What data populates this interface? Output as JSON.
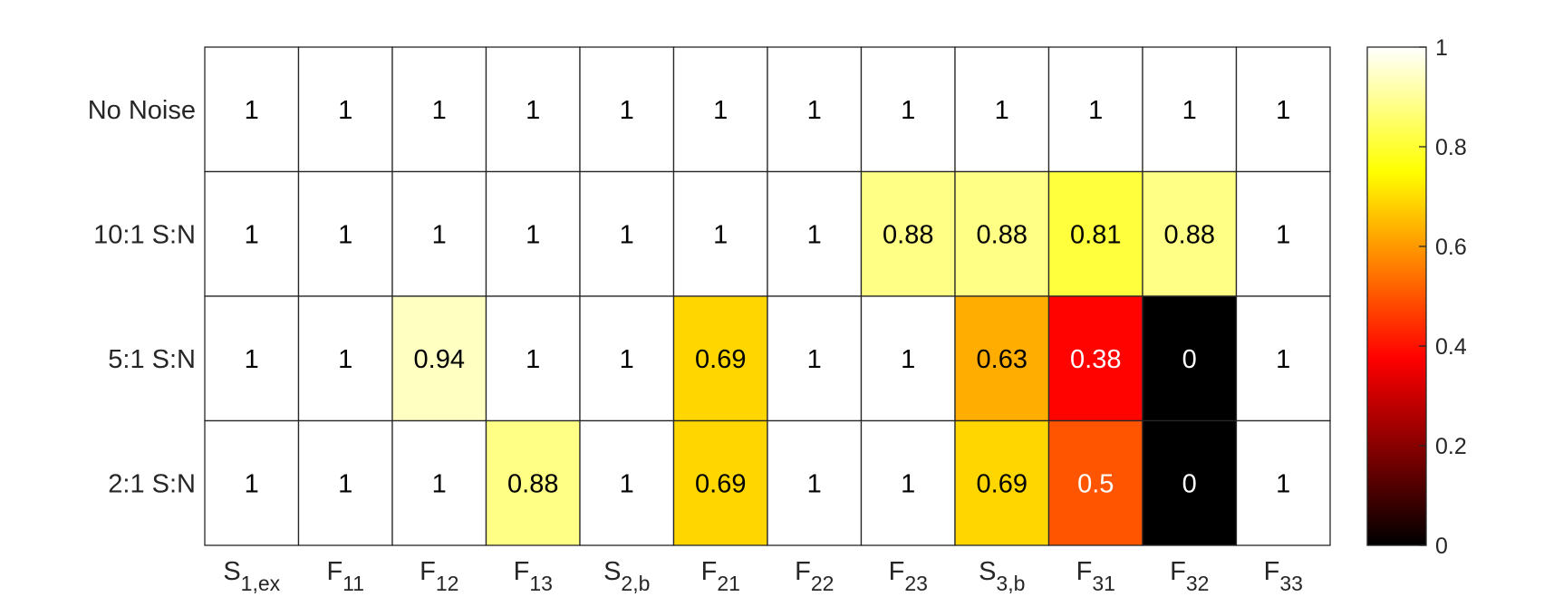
{
  "chart_data": {
    "type": "heatmap",
    "title": "",
    "xlabel": "",
    "ylabel": "",
    "columns": [
      {
        "base": "S",
        "sub": "1,ex"
      },
      {
        "base": "F",
        "sub": "11"
      },
      {
        "base": "F",
        "sub": "12"
      },
      {
        "base": "F",
        "sub": "13"
      },
      {
        "base": "S",
        "sub": "2,b"
      },
      {
        "base": "F",
        "sub": "21"
      },
      {
        "base": "F",
        "sub": "22"
      },
      {
        "base": "F",
        "sub": "23"
      },
      {
        "base": "S",
        "sub": "3,b"
      },
      {
        "base": "F",
        "sub": "31"
      },
      {
        "base": "F",
        "sub": "32"
      },
      {
        "base": "F",
        "sub": "33"
      }
    ],
    "rows": [
      "No Noise",
      "10:1 S:N",
      "5:1 S:N",
      "2:1 S:N"
    ],
    "values": [
      [
        1,
        1,
        1,
        1,
        1,
        1,
        1,
        1,
        1,
        1,
        1,
        1
      ],
      [
        1,
        1,
        1,
        1,
        1,
        1,
        1,
        0.88,
        0.88,
        0.81,
        0.88,
        1
      ],
      [
        1,
        1,
        0.94,
        1,
        1,
        0.69,
        1,
        1,
        0.63,
        0.38,
        0,
        1
      ],
      [
        1,
        1,
        1,
        0.88,
        1,
        0.69,
        1,
        1,
        0.69,
        0.5,
        0,
        1
      ]
    ],
    "colormap": "hot",
    "colorbar": {
      "range": [
        0,
        1
      ],
      "ticks": [
        0,
        0.2,
        0.4,
        0.6,
        0.8,
        1
      ],
      "tick_labels": [
        "0",
        "0.2",
        "0.4",
        "0.6",
        "0.8",
        "1"
      ],
      "placement": "right"
    }
  }
}
